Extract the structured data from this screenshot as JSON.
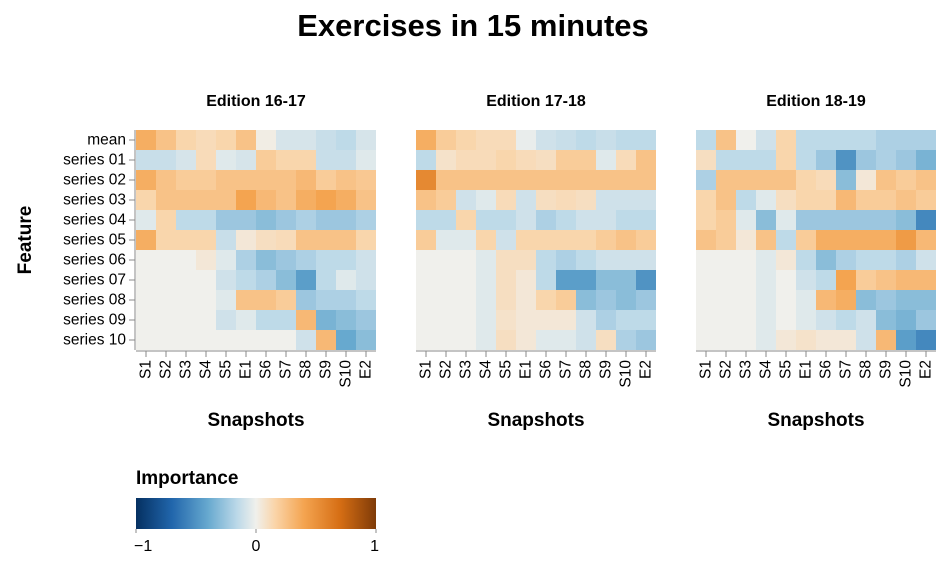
{
  "chart_data": {
    "type": "heatmap",
    "title": "Exercises in 15 minutes",
    "xlabel": "Snapshots",
    "ylabel": "Feature",
    "x": [
      "S1",
      "S2",
      "S3",
      "S4",
      "S5",
      "E1",
      "S6",
      "S7",
      "S8",
      "S9",
      "S10",
      "E2"
    ],
    "y": [
      "mean",
      "series 01",
      "series 02",
      "series 03",
      "series 04",
      "series 05",
      "series 06",
      "series 07",
      "series 08",
      "series 09",
      "series 10"
    ],
    "legend": {
      "title": "Importance",
      "domain": [
        -1,
        1
      ],
      "ticks": [
        "−1",
        "0",
        "1"
      ],
      "scheme": "blueorange"
    },
    "facets": [
      {
        "name": "Edition 16-17",
        "values": [
          [
            0.35,
            0.25,
            0.15,
            0.12,
            0.15,
            0.25,
            0.02,
            -0.08,
            -0.08,
            -0.12,
            -0.15,
            -0.08
          ],
          [
            -0.12,
            -0.12,
            -0.08,
            0.12,
            -0.05,
            -0.08,
            0.2,
            0.15,
            0.15,
            -0.12,
            -0.12,
            -0.05
          ],
          [
            0.35,
            0.25,
            0.2,
            0.2,
            0.25,
            0.25,
            0.25,
            0.25,
            0.3,
            0.2,
            0.25,
            0.22
          ],
          [
            0.15,
            0.25,
            0.25,
            0.25,
            0.25,
            0.4,
            0.3,
            0.25,
            0.35,
            0.4,
            0.35,
            0.25
          ],
          [
            -0.05,
            0.15,
            -0.15,
            -0.15,
            -0.25,
            -0.25,
            -0.3,
            -0.25,
            -0.2,
            -0.25,
            -0.25,
            -0.2
          ],
          [
            0.35,
            0.15,
            0.15,
            0.15,
            -0.12,
            0.05,
            0.1,
            0.12,
            0.25,
            0.25,
            0.25,
            0.15
          ],
          [
            0.0,
            0.0,
            0.0,
            0.05,
            -0.05,
            -0.2,
            -0.3,
            -0.25,
            -0.2,
            -0.15,
            -0.15,
            -0.1
          ],
          [
            0.0,
            0.0,
            0.0,
            0.0,
            -0.1,
            -0.15,
            -0.2,
            -0.3,
            -0.45,
            -0.15,
            -0.05,
            -0.1
          ],
          [
            0.0,
            0.0,
            0.0,
            0.0,
            -0.05,
            0.25,
            0.25,
            0.2,
            -0.25,
            -0.2,
            -0.2,
            -0.15
          ],
          [
            0.0,
            0.0,
            0.0,
            0.0,
            -0.1,
            -0.05,
            -0.15,
            -0.15,
            0.3,
            -0.35,
            -0.3,
            -0.25
          ],
          [
            0.0,
            0.0,
            0.0,
            0.0,
            0.0,
            0.0,
            0.0,
            0.0,
            -0.1,
            0.3,
            -0.4,
            -0.3
          ]
        ]
      },
      {
        "name": "Edition 17-18",
        "values": [
          [
            0.35,
            0.2,
            0.15,
            0.12,
            0.12,
            -0.02,
            -0.1,
            -0.12,
            -0.15,
            -0.12,
            -0.15,
            -0.15
          ],
          [
            -0.15,
            0.08,
            0.12,
            0.12,
            0.15,
            0.12,
            0.1,
            0.2,
            0.2,
            -0.05,
            0.12,
            0.25
          ],
          [
            0.55,
            0.25,
            0.25,
            0.25,
            0.25,
            0.25,
            0.25,
            0.25,
            0.25,
            0.25,
            0.25,
            0.25
          ],
          [
            0.25,
            0.2,
            -0.1,
            -0.05,
            0.12,
            -0.1,
            0.1,
            0.12,
            0.1,
            -0.1,
            -0.1,
            -0.1
          ],
          [
            -0.15,
            -0.15,
            0.15,
            -0.15,
            -0.15,
            -0.1,
            -0.2,
            -0.15,
            -0.1,
            -0.1,
            -0.15,
            -0.15
          ],
          [
            0.2,
            -0.05,
            -0.05,
            0.15,
            -0.1,
            0.15,
            0.15,
            0.15,
            0.15,
            0.2,
            0.25,
            0.2
          ],
          [
            0.0,
            0.0,
            0.0,
            -0.05,
            0.1,
            0.1,
            -0.15,
            -0.2,
            -0.15,
            -0.1,
            -0.1,
            -0.1
          ],
          [
            0.0,
            0.0,
            0.0,
            -0.05,
            0.1,
            0.05,
            -0.15,
            -0.45,
            -0.45,
            -0.3,
            -0.3,
            -0.5
          ],
          [
            0.0,
            0.0,
            0.0,
            -0.05,
            0.1,
            0.05,
            0.15,
            0.2,
            -0.3,
            -0.25,
            -0.3,
            -0.25
          ],
          [
            0.0,
            0.0,
            0.0,
            -0.05,
            0.08,
            0.05,
            0.05,
            0.05,
            -0.1,
            -0.2,
            -0.15,
            -0.15
          ],
          [
            0.0,
            0.0,
            0.0,
            -0.05,
            0.1,
            0.05,
            -0.05,
            -0.05,
            -0.1,
            0.1,
            -0.2,
            -0.25
          ]
        ]
      },
      {
        "name": "Edition 18-19",
        "values": [
          [
            -0.15,
            0.25,
            0.0,
            -0.1,
            0.15,
            -0.15,
            -0.15,
            -0.15,
            -0.15,
            -0.2,
            -0.2,
            -0.2
          ],
          [
            0.1,
            -0.15,
            -0.15,
            -0.15,
            0.15,
            -0.15,
            -0.25,
            -0.5,
            -0.25,
            -0.2,
            -0.25,
            -0.35
          ],
          [
            -0.2,
            0.25,
            0.25,
            0.25,
            0.25,
            0.15,
            0.12,
            -0.3,
            0.05,
            0.25,
            0.2,
            0.25
          ],
          [
            0.15,
            0.25,
            -0.15,
            -0.05,
            0.1,
            0.15,
            0.15,
            0.3,
            0.2,
            0.2,
            0.25,
            0.2
          ],
          [
            0.15,
            0.2,
            -0.05,
            -0.3,
            -0.05,
            -0.25,
            -0.25,
            -0.25,
            -0.25,
            -0.25,
            -0.3,
            -0.55
          ],
          [
            0.25,
            0.2,
            0.05,
            0.25,
            -0.15,
            0.2,
            0.35,
            0.35,
            0.35,
            0.35,
            0.45,
            0.3
          ],
          [
            0.0,
            0.0,
            0.0,
            -0.05,
            0.05,
            -0.15,
            -0.3,
            -0.2,
            -0.15,
            -0.15,
            -0.2,
            -0.1
          ],
          [
            0.0,
            0.0,
            0.0,
            -0.05,
            0.0,
            -0.1,
            -0.15,
            0.4,
            0.2,
            0.25,
            0.3,
            0.3
          ],
          [
            0.0,
            0.0,
            0.0,
            -0.05,
            0.0,
            -0.05,
            0.3,
            0.35,
            -0.3,
            -0.25,
            -0.3,
            -0.3
          ],
          [
            0.0,
            0.0,
            0.0,
            -0.05,
            0.0,
            -0.05,
            -0.1,
            -0.15,
            -0.1,
            -0.3,
            -0.35,
            -0.25
          ],
          [
            0.0,
            0.0,
            0.0,
            -0.05,
            0.05,
            0.08,
            0.05,
            0.05,
            -0.1,
            0.3,
            -0.45,
            -0.55
          ]
        ]
      }
    ]
  }
}
